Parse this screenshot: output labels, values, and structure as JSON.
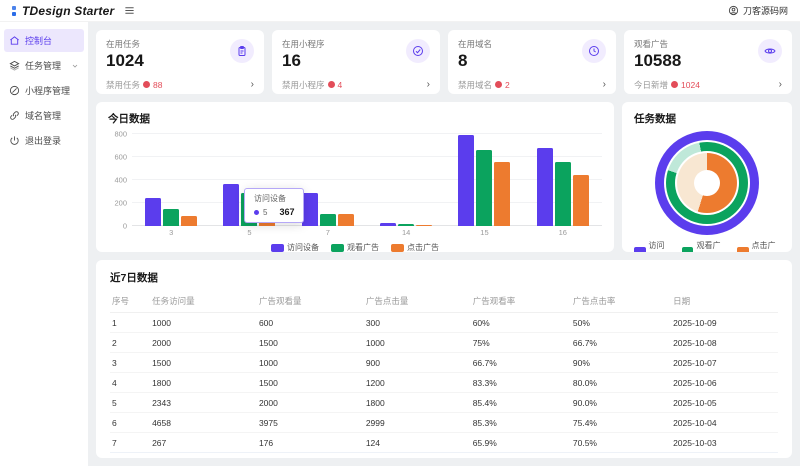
{
  "header": {
    "logo_text": "TDesign Starter",
    "user_name": "刀客源码网"
  },
  "sidebar": {
    "items": [
      {
        "label": "控制台",
        "icon": "dashboard-icon",
        "active": true,
        "expandable": false
      },
      {
        "label": "任务管理",
        "icon": "task-icon",
        "active": false,
        "expandable": true
      },
      {
        "label": "小程序管理",
        "icon": "miniapp-icon",
        "active": false,
        "expandable": false
      },
      {
        "label": "域名管理",
        "icon": "domain-icon",
        "active": false,
        "expandable": false
      },
      {
        "label": "退出登录",
        "icon": "logout-icon",
        "active": false,
        "expandable": false
      }
    ]
  },
  "stat_cards": [
    {
      "title": "在用任务",
      "value": "1024",
      "icon": "clipboard-icon",
      "footer_label": "禁用任务",
      "footer_value": "88"
    },
    {
      "title": "在用小程序",
      "value": "16",
      "icon": "check-circle-icon",
      "footer_label": "禁用小程序",
      "footer_value": "4"
    },
    {
      "title": "在用域名",
      "value": "8",
      "icon": "clock-icon",
      "footer_label": "禁用域名",
      "footer_value": "2"
    },
    {
      "title": "观看广告",
      "value": "10588",
      "icon": "eye-icon",
      "footer_label": "今日新增",
      "footer_value": "1024"
    }
  ],
  "chart_data": [
    {
      "type": "bar",
      "title": "今日数据",
      "categories": [
        "3",
        "5",
        "7",
        "14",
        "15",
        "16"
      ],
      "series": [
        {
          "name": "访问设备",
          "color": "#5b3ded",
          "values": [
            245,
            367,
            290,
            25,
            790,
            675
          ]
        },
        {
          "name": "观看广告",
          "color": "#0ba35e",
          "values": [
            150,
            290,
            105,
            15,
            665,
            555
          ]
        },
        {
          "name": "点击广告",
          "color": "#ed7b2f",
          "values": [
            90,
            245,
            105,
            10,
            555,
            445
          ]
        }
      ],
      "ylim": [
        0,
        800
      ],
      "yticks": [
        0,
        200,
        400,
        600,
        800
      ],
      "grid": true,
      "legend_position": "bottom",
      "tooltip": {
        "series": "访问设备",
        "category": "5",
        "value": "367"
      }
    },
    {
      "type": "donut",
      "title": "任务数据",
      "legend": [
        {
          "name": "访问量",
          "color": "#5b3ded"
        },
        {
          "name": "观看广告",
          "color": "#0ba35e"
        },
        {
          "name": "点击广告",
          "color": "#ed7b2f"
        }
      ],
      "rings": [
        {
          "name": "访问量",
          "segments": [
            {
              "color": "#5b3ded",
              "pct": 100
            }
          ]
        },
        {
          "name": "观看广告",
          "segments": [
            {
              "color": "#0ba35e",
              "pct": 80
            },
            {
              "color": "#bfe8d9",
              "pct": 17
            },
            {
              "color": "#0ba35e",
              "pct": 3
            }
          ]
        },
        {
          "name": "点击广告",
          "segments": [
            {
              "color": "#ed7b2f",
              "pct": 55
            },
            {
              "color": "#f8e7d2",
              "pct": 45
            }
          ]
        }
      ],
      "legend_position": "bottom"
    }
  ],
  "table": {
    "title": "近7日数据",
    "columns": [
      "序号",
      "任务访问量",
      "广告观看量",
      "广告点击量",
      "广告观看率",
      "广告点击率",
      "日期"
    ],
    "col_widths": [
      "6%",
      "16%",
      "16%",
      "16%",
      "15%",
      "15%",
      "16%"
    ],
    "rows": [
      [
        "1",
        "1000",
        "600",
        "300",
        "60%",
        "50%",
        "2025-10-09"
      ],
      [
        "2",
        "2000",
        "1500",
        "1000",
        "75%",
        "66.7%",
        "2025-10-08"
      ],
      [
        "3",
        "1500",
        "1000",
        "900",
        "66.7%",
        "90%",
        "2025-10-07"
      ],
      [
        "4",
        "1800",
        "1500",
        "1200",
        "83.3%",
        "80.0%",
        "2025-10-06"
      ],
      [
        "5",
        "2343",
        "2000",
        "1800",
        "85.4%",
        "90.0%",
        "2025-10-05"
      ],
      [
        "6",
        "4658",
        "3975",
        "2999",
        "85.3%",
        "75.4%",
        "2025-10-04"
      ],
      [
        "7",
        "267",
        "176",
        "124",
        "65.9%",
        "70.5%",
        "2025-10-03"
      ]
    ]
  },
  "colors": {
    "primary": "#5b3ded",
    "primary_light": "#ece7fd",
    "green": "#0ba35e",
    "orange": "#ed7b2f",
    "danger": "#e34d59",
    "page_bg": "#eef0f2"
  }
}
